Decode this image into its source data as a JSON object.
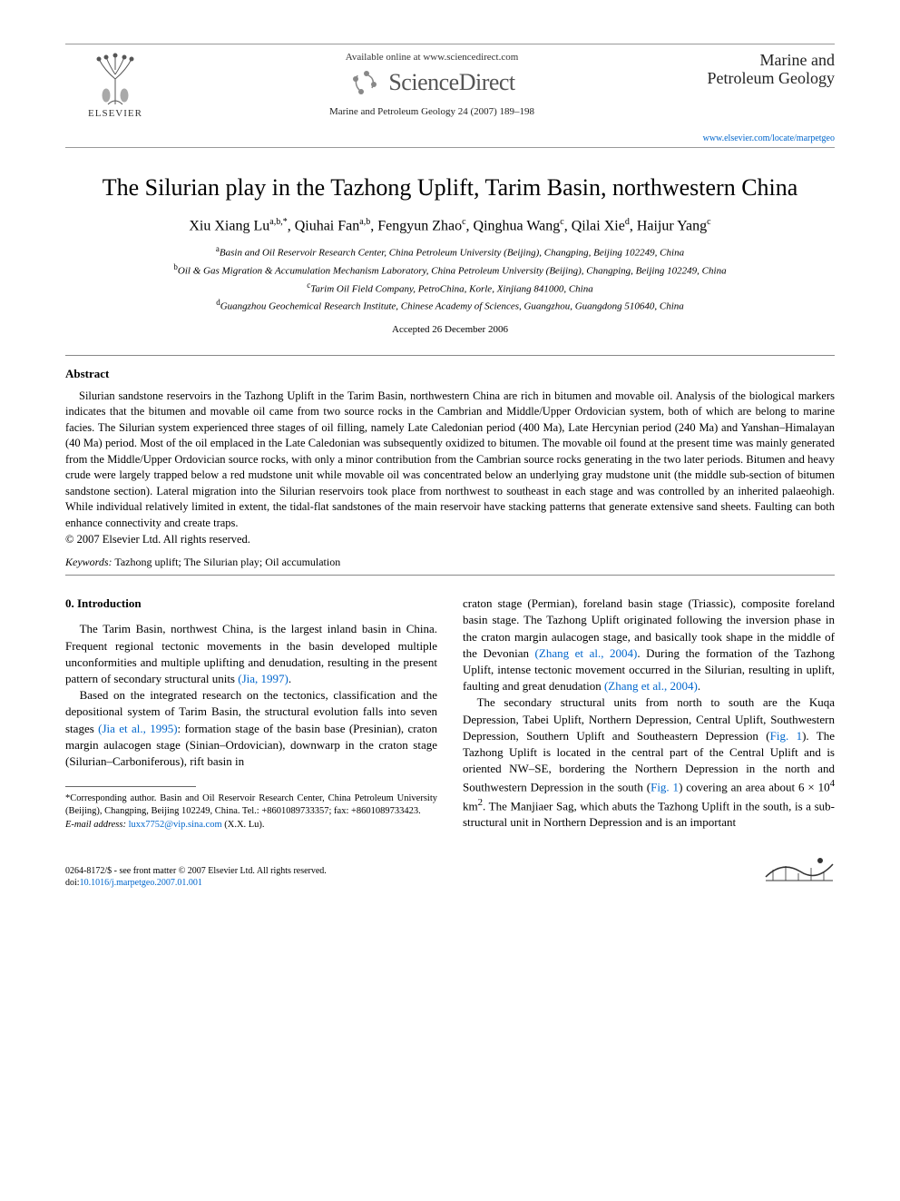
{
  "header": {
    "available_online": "Available online at www.sciencedirect.com",
    "sciencedirect_label": "ScienceDirect",
    "elsevier_label": "ELSEVIER",
    "journal_ref": "Marine and Petroleum Geology 24 (2007) 189–198",
    "journal_name_line1": "Marine and",
    "journal_name_line2": "Petroleum Geology",
    "journal_url": "www.elsevier.com/locate/marpetgeo"
  },
  "title": "The Silurian play in the Tazhong Uplift, Tarim Basin, northwestern China",
  "authors_html": "Xiu Xiang Lu<sup>a,b,*</sup>, Qiuhai Fan<sup>a,b</sup>, Fengyun Zhao<sup>c</sup>, Qinghua Wang<sup>c</sup>, Qilai Xie<sup>d</sup>, Haijur Yang<sup>c</sup>",
  "affiliations": {
    "a": "Basin and Oil Reservoir Research Center, China Petroleum University (Beijing), Changping, Beijing 102249, China",
    "b": "Oil & Gas Migration & Accumulation Mechanism Laboratory, China Petroleum University (Beijing), Changping, Beijing 102249, China",
    "c": "Tarim Oil Field Company, PetroChina, Korle, Xinjiang 841000, China",
    "d": "Guangzhou Geochemical Research Institute, Chinese Academy of Sciences, Guangzhou, Guangdong 510640, China"
  },
  "accepted": "Accepted 26 December 2006",
  "abstract": {
    "heading": "Abstract",
    "body": "Silurian sandstone reservoirs in the Tazhong Uplift in the Tarim Basin, northwestern China are rich in bitumen and movable oil. Analysis of the biological markers indicates that the bitumen and movable oil came from two source rocks in the Cambrian and Middle/Upper Ordovician system, both of which are belong to marine facies. The Silurian system experienced three stages of oil filling, namely Late Caledonian period (400 Ma), Late Hercynian period (240 Ma) and Yanshan–Himalayan (40 Ma) period. Most of the oil emplaced in the Late Caledonian was subsequently oxidized to bitumen. The movable oil found at the present time was mainly generated from the Middle/Upper Ordovician source rocks, with only a minor contribution from the Cambrian source rocks generating in the two later periods. Bitumen and heavy crude were largely trapped below a red mudstone unit while movable oil was concentrated below an underlying gray mudstone unit (the middle sub-section of bitumen sandstone section). Lateral migration into the Silurian reservoirs took place from northwest to southeast in each stage and was controlled by an inherited palaeohigh. While individual relatively limited in extent, the tidal-flat sandstones of the main reservoir have stacking patterns that generate extensive sand sheets. Faulting can both enhance connectivity and create traps.",
    "copyright": "© 2007 Elsevier Ltd. All rights reserved."
  },
  "keywords": {
    "label": "Keywords:",
    "text": " Tazhong uplift; The Silurian play; Oil accumulation"
  },
  "sections": {
    "intro_heading": "0. Introduction",
    "col_left_p1": "The Tarim Basin, northwest China, is the largest inland basin in China. Frequent regional tectonic movements in the basin developed multiple unconformities and multiple uplifting and denudation, resulting in the present pattern of secondary structural units ",
    "col_left_p1_cite": "(Jia, 1997)",
    "col_left_p1_tail": ".",
    "col_left_p2a": "Based on the integrated research on the tectonics, classification and the depositional system of Tarim Basin, the structural evolution falls into seven stages ",
    "col_left_p2_cite": "(Jia et al., 1995)",
    "col_left_p2b": ": formation stage of the basin base (Presinian), craton margin aulacogen stage (Sinian–Ordovician), downwarp in the craton stage (Silurian–Carboniferous), rift basin in",
    "col_right_p1a": "craton stage (Permian), foreland basin stage (Triassic), composite foreland basin stage. The Tazhong Uplift originated following the inversion phase in the craton margin aulacogen stage, and basically took shape in the middle of the Devonian ",
    "col_right_p1_cite1": "(Zhang et al., 2004)",
    "col_right_p1b": ". During the formation of the Tazhong Uplift, intense tectonic movement occurred in the Silurian, resulting in uplift, faulting and great denudation ",
    "col_right_p1_cite2": "(Zhang et al., 2004)",
    "col_right_p1c": ".",
    "col_right_p2a": "The secondary structural units from north to south are the Kuqa Depression, Tabei Uplift, Northern Depression, Central Uplift, Southwestern Depression, Southern Uplift and Southeastern Depression (",
    "col_right_p2_fig1": "Fig. 1",
    "col_right_p2b": "). The Tazhong Uplift is located in the central part of the Central Uplift and is oriented NW–SE, bordering the Northern Depression in the north and Southwestern Depression in the south (",
    "col_right_p2_fig2": "Fig. 1",
    "col_right_p2c": ") covering an area about 6 × 10",
    "col_right_p2_sup": "4",
    "col_right_p2d": " km",
    "col_right_p2_sup2": "2",
    "col_right_p2e": ". The Manjiaer Sag, which abuts the Tazhong Uplift in the south, is a sub-structural unit in Northern Depression and is an important"
  },
  "footnote": {
    "corr": "*Corresponding author. Basin and Oil Reservoir Research Center, China Petroleum University (Beijing), Changping, Beijing 102249, China. Tel.: +8601089733357; fax: +8601089733423.",
    "email_label": "E-mail address:",
    "email": "luxx7752@vip.sina.com",
    "email_who": " (X.X. Lu)."
  },
  "footer": {
    "line1": "0264-8172/$ - see front matter © 2007 Elsevier Ltd. All rights reserved.",
    "doi_label": "doi:",
    "doi": "10.1016/j.marpetgeo.2007.01.001"
  },
  "colors": {
    "link": "#0066cc",
    "text": "#000000",
    "rule": "#888888"
  }
}
